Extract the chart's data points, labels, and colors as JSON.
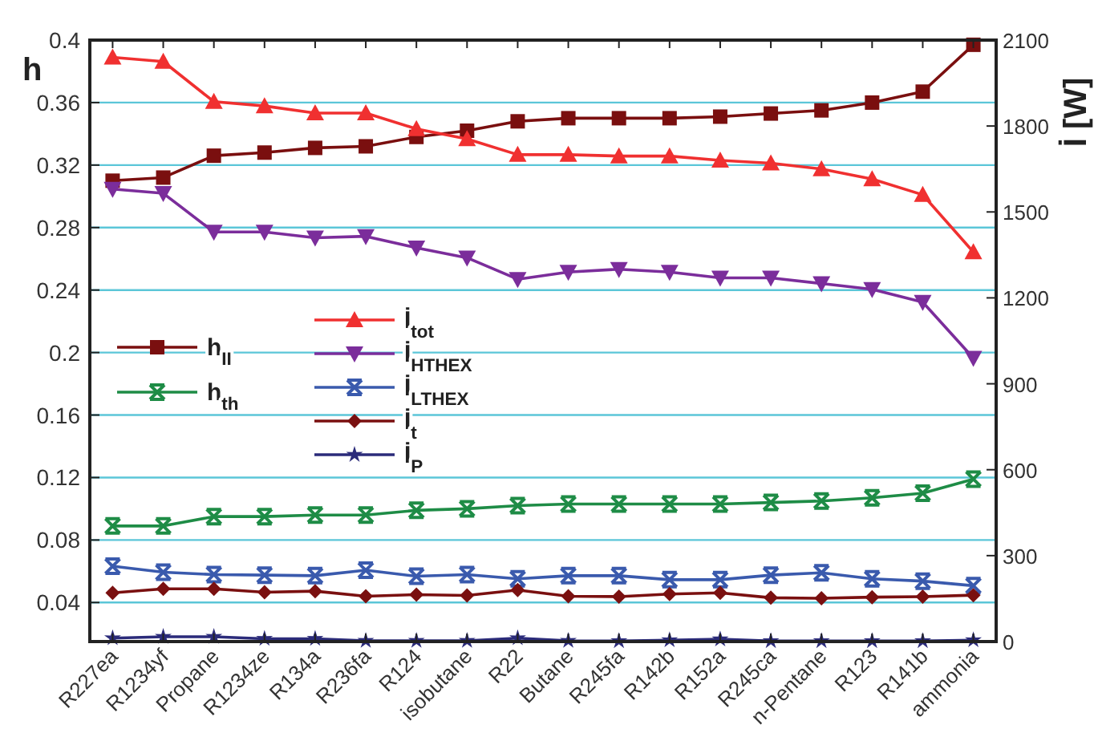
{
  "chart_data": {
    "type": "line",
    "ylabel": "h",
    "y2label": "İ [W]",
    "categories": [
      "R227ea",
      "R1234yf",
      "Propane",
      "R1234ze",
      "R134a",
      "R236fa",
      "R124",
      "isobutane",
      "R22",
      "Butane",
      "R245fa",
      "R142b",
      "R152a",
      "R245ca",
      "n-Pentane",
      "R123",
      "R141b",
      "ammonia"
    ],
    "ylim": [
      0.015,
      0.4
    ],
    "yticks": [
      {
        "value": 0.04,
        "label": "0.04"
      },
      {
        "value": 0.08,
        "label": "0.08"
      },
      {
        "value": 0.12,
        "label": "0.12"
      },
      {
        "value": 0.16,
        "label": "0.16"
      },
      {
        "value": 0.2,
        "label": "0.2"
      },
      {
        "value": 0.24,
        "label": "0.24"
      },
      {
        "value": 0.28,
        "label": "0.28"
      },
      {
        "value": 0.32,
        "label": "0.32"
      },
      {
        "value": 0.36,
        "label": "0.36"
      },
      {
        "value": 0.4,
        "label": "0.4"
      }
    ],
    "y2lim": [
      0,
      2100
    ],
    "y2ticks": [
      0,
      300,
      600,
      900,
      1200,
      1500,
      1800,
      2100
    ],
    "grid": "y",
    "legend": "center left",
    "series": [
      {
        "name": "h$_{II}$",
        "color": "#7a0f0f",
        "marker": "square",
        "values": [
          0.31,
          0.312,
          0.326,
          0.328,
          0.331,
          0.332,
          0.338,
          0.342,
          0.348,
          0.35,
          0.35,
          0.35,
          0.351,
          0.353,
          0.355,
          0.36,
          0.367,
          0.397
        ]
      },
      {
        "name": "h$_{th}$",
        "color": "#1e8c46",
        "marker": "cross",
        "values": [
          0.089,
          0.089,
          0.095,
          0.095,
          0.096,
          0.096,
          0.099,
          0.1,
          0.102,
          0.103,
          0.103,
          0.103,
          0.103,
          0.104,
          0.105,
          0.107,
          0.11,
          0.119
        ]
      },
      {
        "name": "İ$_{tot}$",
        "color": "#f03030",
        "marker": "triangle",
        "axis": "y2",
        "values": [
          2040,
          2025,
          1885,
          1870,
          1845,
          1845,
          1790,
          1755,
          1700,
          1700,
          1695,
          1695,
          1680,
          1670,
          1650,
          1615,
          1560,
          1360
        ]
      },
      {
        "name": "İ$_{HTHEX}$",
        "color": "#7b2d9b",
        "marker": "triangle-down",
        "axis": "y2",
        "values": [
          1580,
          1565,
          1430,
          1430,
          1410,
          1415,
          1375,
          1340,
          1265,
          1290,
          1300,
          1290,
          1270,
          1270,
          1250,
          1230,
          1185,
          990
        ]
      },
      {
        "name": "İ$_{LTHEX}$",
        "color": "#3a5aad",
        "marker": "cross",
        "axis": "y2",
        "values": [
          263,
          242,
          234,
          232,
          230,
          249,
          228,
          234,
          219,
          230,
          230,
          216,
          216,
          232,
          240,
          219,
          211,
          195
        ]
      },
      {
        "name": "İ$_{t}$",
        "color": "#7a1010",
        "marker": "diamond",
        "axis": "y2",
        "values": [
          170,
          184,
          184,
          172,
          176,
          158,
          164,
          161,
          180,
          158,
          157,
          166,
          170,
          153,
          151,
          155,
          157,
          162
        ]
      },
      {
        "name": "İ$_{P}$",
        "color": "#2b2b7a",
        "marker": "star",
        "axis": "y2",
        "values": [
          12,
          17,
          17,
          10,
          10,
          3,
          3,
          3,
          12,
          3,
          2,
          5,
          8,
          2,
          2,
          2,
          2,
          5
        ]
      }
    ]
  }
}
